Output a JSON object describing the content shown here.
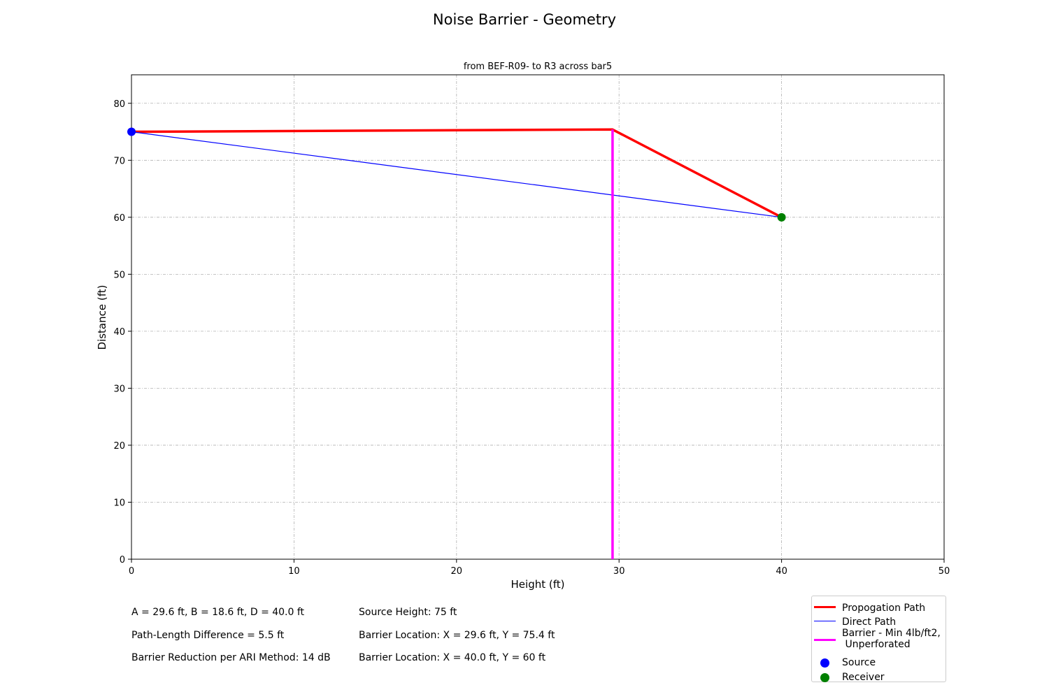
{
  "page": {
    "suptitle": "Noise Barrier - Geometry"
  },
  "chart_data": {
    "type": "line",
    "title": "from BEF-R09- to R3 across bar5",
    "xlabel": "Height (ft)",
    "ylabel": "Distance (ft)",
    "xlim": [
      0,
      50
    ],
    "ylim": [
      0,
      85
    ],
    "xticks": [
      0,
      10,
      20,
      30,
      40,
      50
    ],
    "yticks": [
      0,
      10,
      20,
      30,
      40,
      50,
      60,
      70,
      80
    ],
    "grid": true,
    "legend_position": "bottom-right, below plot",
    "series": [
      {
        "name": "Propogation Path",
        "color": "#ff0000",
        "style": "line-thick",
        "points": [
          [
            0,
            75
          ],
          [
            29.6,
            75.4
          ],
          [
            40,
            60
          ]
        ]
      },
      {
        "name": "Direct Path",
        "color": "#0000ff",
        "style": "line-thin",
        "points": [
          [
            0,
            75
          ],
          [
            40,
            60
          ]
        ]
      },
      {
        "name": "Barrier - Min 4lb/ft2,\n Unperforated",
        "color": "#ff00ff",
        "style": "line-thick",
        "points": [
          [
            29.6,
            0
          ],
          [
            29.6,
            75.4
          ]
        ]
      },
      {
        "name": "Source",
        "color": "#0000ff",
        "style": "marker",
        "points": [
          [
            0,
            75
          ]
        ]
      },
      {
        "name": "Receiver",
        "color": "#008000",
        "style": "marker",
        "points": [
          [
            40,
            60
          ]
        ]
      }
    ]
  },
  "info": {
    "left": [
      "A = 29.6 ft, B = 18.6 ft, D = 40.0 ft",
      "Path-Length Difference = 5.5 ft",
      "Barrier Reduction per ARI Method: 14 dB"
    ],
    "right": [
      "Source Height: 75 ft",
      "Barrier Location: X = 29.6 ft, Y = 75.4 ft",
      "Barrier Location: X = 40.0 ft, Y = 60 ft"
    ]
  }
}
